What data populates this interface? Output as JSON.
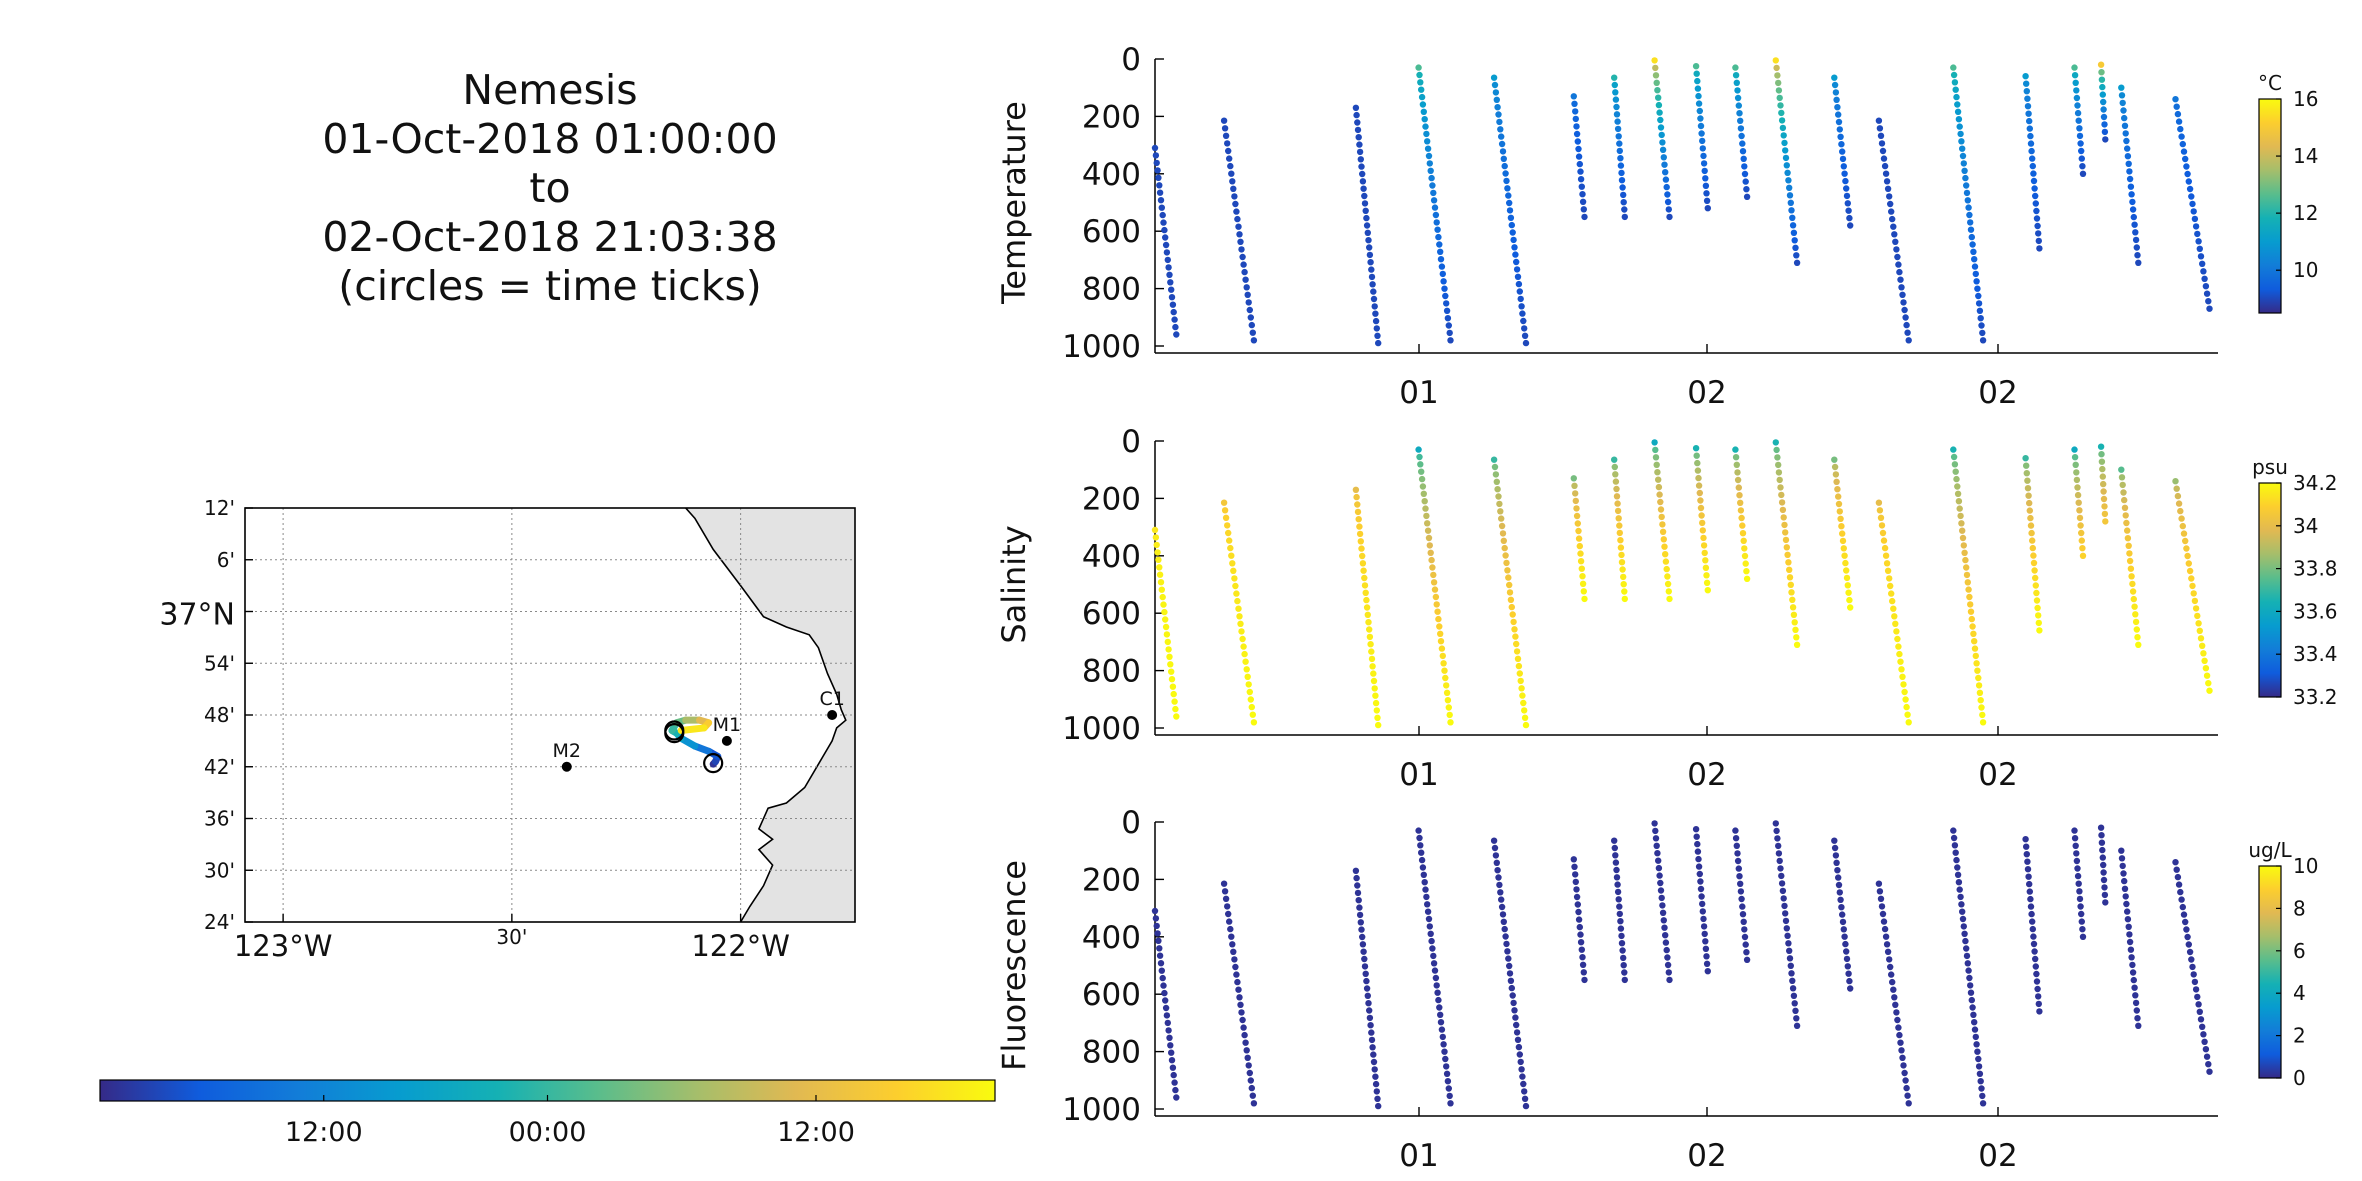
{
  "figure": {
    "title_lines": [
      "Nemesis",
      "01-Oct-2018 01:00:00",
      "to",
      "02-Oct-2018 21:03:38",
      "(circles = time ticks)"
    ]
  },
  "chart_data": [
    {
      "type": "scatter",
      "name": "map",
      "lat_ticks": [
        "12'",
        "6'",
        "37°N",
        "54'",
        "48'",
        "42'",
        "36'",
        "30'",
        "24'"
      ],
      "lon_ticks": [
        "123°W",
        "30'",
        "122°W"
      ],
      "xlim": [
        -123.0833,
        -121.75
      ],
      "ylim": [
        36.4,
        37.2
      ],
      "grid": true,
      "moorings": [
        {
          "label": "C1",
          "lon": -121.8,
          "lat": 36.8
        },
        {
          "label": "M1",
          "lon": -122.03,
          "lat": 36.75
        },
        {
          "label": "M2",
          "lon": -122.38,
          "lat": 36.7
        }
      ],
      "track_color_scale": "time",
      "land_color": "#e3e3e3"
    },
    {
      "type": "colorbar",
      "name": "time-colorbar",
      "tick_labels": [
        "12:00",
        "00:00",
        "12:00"
      ],
      "tick_positions": [
        0.25,
        0.5,
        0.8
      ]
    },
    {
      "type": "scatter",
      "name": "temperature-section",
      "ylabel": "Temperature",
      "yticks": [
        0,
        200,
        400,
        600,
        800,
        1000
      ],
      "ylim": [
        0,
        1000
      ],
      "xtick_labels": [
        "01",
        "02",
        "02"
      ],
      "colorbar": {
        "unit": "°C",
        "min": 8.5,
        "max": 16,
        "ticks": [
          10,
          12,
          14,
          16
        ]
      },
      "profiles": [
        {
          "x0": 0.0,
          "x1": 0.02,
          "top": 310,
          "bottom": 960,
          "v0": 9,
          "v1": 9
        },
        {
          "x0": 0.065,
          "x1": 0.093,
          "top": 215,
          "bottom": 980,
          "v0": 9,
          "v1": 9
        },
        {
          "x0": 0.189,
          "x1": 0.21,
          "top": 170,
          "bottom": 990,
          "v0": 9,
          "v1": 9
        },
        {
          "x0": 0.248,
          "x1": 0.278,
          "top": 30,
          "bottom": 980,
          "v0": 12.5,
          "v1": 9
        },
        {
          "x0": 0.319,
          "x1": 0.349,
          "top": 65,
          "bottom": 990,
          "v0": 11,
          "v1": 9
        },
        {
          "x0": 0.394,
          "x1": 0.404,
          "top": 130,
          "bottom": 550,
          "v0": 10,
          "v1": 9
        },
        {
          "x0": 0.432,
          "x1": 0.442,
          "top": 65,
          "bottom": 550,
          "v0": 12,
          "v1": 9
        },
        {
          "x0": 0.47,
          "x1": 0.484,
          "top": 5,
          "bottom": 550,
          "v0": 15.5,
          "v1": 9
        },
        {
          "x0": 0.509,
          "x1": 0.52,
          "top": 25,
          "bottom": 520,
          "v0": 12.5,
          "v1": 9
        },
        {
          "x0": 0.546,
          "x1": 0.557,
          "top": 30,
          "bottom": 480,
          "v0": 12.5,
          "v1": 9
        },
        {
          "x0": 0.584,
          "x1": 0.604,
          "top": 5,
          "bottom": 710,
          "v0": 15.5,
          "v1": 9
        },
        {
          "x0": 0.639,
          "x1": 0.654,
          "top": 65,
          "bottom": 580,
          "v0": 11,
          "v1": 9
        },
        {
          "x0": 0.681,
          "x1": 0.709,
          "top": 215,
          "bottom": 980,
          "v0": 9,
          "v1": 9
        },
        {
          "x0": 0.751,
          "x1": 0.779,
          "top": 30,
          "bottom": 980,
          "v0": 12.5,
          "v1": 9
        },
        {
          "x0": 0.819,
          "x1": 0.832,
          "top": 60,
          "bottom": 660,
          "v0": 11,
          "v1": 9
        },
        {
          "x0": 0.865,
          "x1": 0.873,
          "top": 30,
          "bottom": 400,
          "v0": 12.5,
          "v1": 9
        },
        {
          "x0": 0.89,
          "x1": 0.894,
          "top": 20,
          "bottom": 280,
          "v0": 15,
          "v1": 9
        },
        {
          "x0": 0.909,
          "x1": 0.925,
          "top": 100,
          "bottom": 710,
          "v0": 11,
          "v1": 9
        },
        {
          "x0": 0.96,
          "x1": 0.992,
          "top": 140,
          "bottom": 870,
          "v0": 10,
          "v1": 9
        }
      ]
    },
    {
      "type": "scatter",
      "name": "salinity-section",
      "ylabel": "Salinity",
      "yticks": [
        0,
        200,
        400,
        600,
        800,
        1000
      ],
      "ylim": [
        0,
        1000
      ],
      "xtick_labels": [
        "01",
        "02",
        "02"
      ],
      "colorbar": {
        "unit": "psu",
        "min": 33.2,
        "max": 34.2,
        "ticks": [
          33.2,
          33.4,
          33.6,
          33.8,
          34,
          34.2
        ]
      },
      "profiles": [
        {
          "x0": 0.0,
          "x1": 0.02,
          "top": 310,
          "bottom": 960,
          "v0": 34.15,
          "v1": 34.2
        },
        {
          "x0": 0.065,
          "x1": 0.093,
          "top": 215,
          "bottom": 980,
          "v0": 34.05,
          "v1": 34.2
        },
        {
          "x0": 0.189,
          "x1": 0.21,
          "top": 170,
          "bottom": 990,
          "v0": 34.0,
          "v1": 34.2
        },
        {
          "x0": 0.248,
          "x1": 0.278,
          "top": 30,
          "bottom": 980,
          "v0": 33.6,
          "v1": 34.2
        },
        {
          "x0": 0.319,
          "x1": 0.349,
          "top": 65,
          "bottom": 990,
          "v0": 33.7,
          "v1": 34.2
        },
        {
          "x0": 0.394,
          "x1": 0.404,
          "top": 130,
          "bottom": 550,
          "v0": 33.8,
          "v1": 34.2
        },
        {
          "x0": 0.432,
          "x1": 0.442,
          "top": 65,
          "bottom": 550,
          "v0": 33.7,
          "v1": 34.2
        },
        {
          "x0": 0.47,
          "x1": 0.484,
          "top": 5,
          "bottom": 550,
          "v0": 33.6,
          "v1": 34.2
        },
        {
          "x0": 0.509,
          "x1": 0.52,
          "top": 25,
          "bottom": 520,
          "v0": 33.65,
          "v1": 34.2
        },
        {
          "x0": 0.546,
          "x1": 0.557,
          "top": 30,
          "bottom": 480,
          "v0": 33.65,
          "v1": 34.2
        },
        {
          "x0": 0.584,
          "x1": 0.604,
          "top": 5,
          "bottom": 710,
          "v0": 33.65,
          "v1": 34.2
        },
        {
          "x0": 0.639,
          "x1": 0.654,
          "top": 65,
          "bottom": 580,
          "v0": 33.8,
          "v1": 34.2
        },
        {
          "x0": 0.681,
          "x1": 0.709,
          "top": 215,
          "bottom": 980,
          "v0": 34.0,
          "v1": 34.2
        },
        {
          "x0": 0.751,
          "x1": 0.779,
          "top": 30,
          "bottom": 980,
          "v0": 33.65,
          "v1": 34.2
        },
        {
          "x0": 0.819,
          "x1": 0.832,
          "top": 60,
          "bottom": 660,
          "v0": 33.7,
          "v1": 34.2
        },
        {
          "x0": 0.865,
          "x1": 0.873,
          "top": 30,
          "bottom": 400,
          "v0": 33.6,
          "v1": 34.1
        },
        {
          "x0": 0.89,
          "x1": 0.894,
          "top": 20,
          "bottom": 280,
          "v0": 33.65,
          "v1": 34.05
        },
        {
          "x0": 0.909,
          "x1": 0.925,
          "top": 100,
          "bottom": 710,
          "v0": 33.75,
          "v1": 34.2
        },
        {
          "x0": 0.96,
          "x1": 0.992,
          "top": 140,
          "bottom": 870,
          "v0": 33.85,
          "v1": 34.2
        }
      ]
    },
    {
      "type": "scatter",
      "name": "fluorescence-section",
      "ylabel": "Fluorescence",
      "yticks": [
        0,
        200,
        400,
        600,
        800,
        1000
      ],
      "ylim": [
        0,
        1000
      ],
      "xtick_labels": [
        "01",
        "02",
        "02"
      ],
      "colorbar": {
        "unit": "ug/L",
        "min": 0,
        "max": 10,
        "ticks": [
          0,
          2,
          4,
          6,
          8,
          10
        ]
      },
      "profiles": [
        {
          "x0": 0.0,
          "x1": 0.02,
          "top": 310,
          "bottom": 960,
          "v0": 0.2,
          "v1": 0.2
        },
        {
          "x0": 0.065,
          "x1": 0.093,
          "top": 215,
          "bottom": 980,
          "v0": 0.2,
          "v1": 0.2
        },
        {
          "x0": 0.189,
          "x1": 0.21,
          "top": 170,
          "bottom": 990,
          "v0": 0.2,
          "v1": 0.2
        },
        {
          "x0": 0.248,
          "x1": 0.278,
          "top": 30,
          "bottom": 980,
          "v0": 0.2,
          "v1": 0.2
        },
        {
          "x0": 0.319,
          "x1": 0.349,
          "top": 65,
          "bottom": 990,
          "v0": 0.2,
          "v1": 0.2
        },
        {
          "x0": 0.394,
          "x1": 0.404,
          "top": 130,
          "bottom": 550,
          "v0": 0.2,
          "v1": 0.2
        },
        {
          "x0": 0.432,
          "x1": 0.442,
          "top": 65,
          "bottom": 550,
          "v0": 0.2,
          "v1": 0.2
        },
        {
          "x0": 0.47,
          "x1": 0.484,
          "top": 5,
          "bottom": 550,
          "v0": 0.2,
          "v1": 0.2
        },
        {
          "x0": 0.509,
          "x1": 0.52,
          "top": 25,
          "bottom": 520,
          "v0": 0.2,
          "v1": 0.2
        },
        {
          "x0": 0.546,
          "x1": 0.557,
          "top": 30,
          "bottom": 480,
          "v0": 0.2,
          "v1": 0.2
        },
        {
          "x0": 0.584,
          "x1": 0.604,
          "top": 5,
          "bottom": 710,
          "v0": 0.2,
          "v1": 0.2
        },
        {
          "x0": 0.639,
          "x1": 0.654,
          "top": 65,
          "bottom": 580,
          "v0": 0.2,
          "v1": 0.2
        },
        {
          "x0": 0.681,
          "x1": 0.709,
          "top": 215,
          "bottom": 980,
          "v0": 0.2,
          "v1": 0.2
        },
        {
          "x0": 0.751,
          "x1": 0.779,
          "top": 30,
          "bottom": 980,
          "v0": 0.2,
          "v1": 0.2
        },
        {
          "x0": 0.819,
          "x1": 0.832,
          "top": 60,
          "bottom": 660,
          "v0": 0.2,
          "v1": 0.2
        },
        {
          "x0": 0.865,
          "x1": 0.873,
          "top": 30,
          "bottom": 400,
          "v0": 0.2,
          "v1": 0.2
        },
        {
          "x0": 0.89,
          "x1": 0.894,
          "top": 20,
          "bottom": 280,
          "v0": 0.2,
          "v1": 0.2
        },
        {
          "x0": 0.909,
          "x1": 0.925,
          "top": 100,
          "bottom": 710,
          "v0": 0.2,
          "v1": 0.2
        },
        {
          "x0": 0.96,
          "x1": 0.992,
          "top": 140,
          "bottom": 870,
          "v0": 0.2,
          "v1": 0.2
        }
      ]
    }
  ]
}
